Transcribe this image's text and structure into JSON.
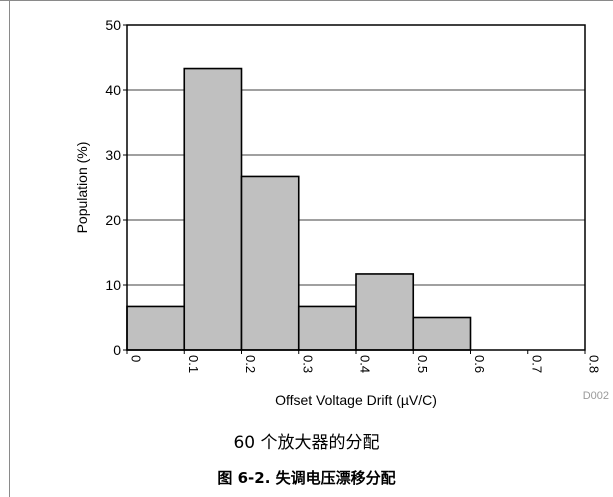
{
  "chart_data": {
    "type": "bar",
    "title": "",
    "xlabel": "Offset Voltage Drift (µV/C)",
    "ylabel": "Population (%)",
    "xlim": [
      0,
      0.8
    ],
    "ylim": [
      0,
      50
    ],
    "x_ticks": [
      "0",
      "0.1",
      "0.2",
      "0.3",
      "0.4",
      "0.5",
      "0.6",
      "0.7",
      "0.8"
    ],
    "y_ticks": [
      "0",
      "10",
      "20",
      "30",
      "40",
      "50"
    ],
    "bins": [
      {
        "start": 0.0,
        "end": 0.1,
        "value": 6.7
      },
      {
        "start": 0.1,
        "end": 0.2,
        "value": 43.3
      },
      {
        "start": 0.2,
        "end": 0.3,
        "value": 26.7
      },
      {
        "start": 0.3,
        "end": 0.4,
        "value": 6.7
      },
      {
        "start": 0.4,
        "end": 0.5,
        "value": 11.7
      },
      {
        "start": 0.5,
        "end": 0.6,
        "value": 5.0
      }
    ],
    "grid": true,
    "bar_color": "#c0c0c0",
    "watermark": "D002"
  },
  "captions": {
    "sub": "60 个放大器的分配",
    "figure": "图 6-2. 失调电压漂移分配"
  }
}
